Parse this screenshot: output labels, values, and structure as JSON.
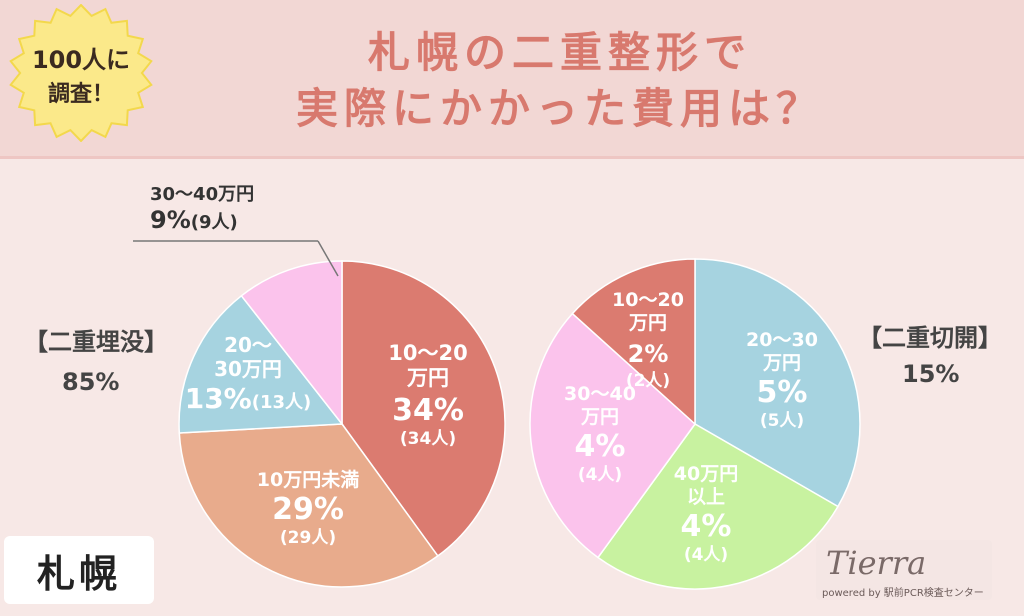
{
  "header": {
    "title_line1": "札幌の二重整形で",
    "title_line2": "実際にかかった費用は？",
    "badge_line1": "100人に",
    "badge_line2": "調査！"
  },
  "city": "札幌",
  "logo": {
    "name": "Tierra",
    "sub": "powered by 駅前PCR検査センター"
  },
  "colors": {
    "red": "#db7b70",
    "orange": "#e8ab8c",
    "blue": "#a6d3e0",
    "pink": "#fbc3ec",
    "green": "#c8f2a0"
  },
  "chart_data": [
    {
      "type": "pie",
      "title": "【二重埋没】",
      "share": "85%",
      "slices": [
        {
          "name": "10〜20万円",
          "value": 34,
          "pct": "34%",
          "count": "(34人)",
          "color": "#db7b70"
        },
        {
          "name": "10万円未満",
          "value": 29,
          "pct": "29%",
          "count": "(29人)",
          "color": "#e8ab8c"
        },
        {
          "name": "20〜30万円",
          "value": 13,
          "pct": "13%",
          "count": "(13人)",
          "color": "#a6d3e0"
        },
        {
          "name": "30〜40万円",
          "value": 9,
          "pct": "9%",
          "count": "(9人)",
          "color": "#fbc3ec"
        }
      ]
    },
    {
      "type": "pie",
      "title": "【二重切開】",
      "share": "15%",
      "slices": [
        {
          "name": "20〜30万円",
          "value": 5,
          "pct": "5%",
          "count": "(5人)",
          "color": "#a6d3e0"
        },
        {
          "name": "40万円以上",
          "value": 4,
          "pct": "4%",
          "count": "(4人)",
          "color": "#c8f2a0"
        },
        {
          "name": "30〜40万円",
          "value": 4,
          "pct": "4%",
          "count": "(4人)",
          "color": "#fbc3ec"
        },
        {
          "name": "10〜20万円",
          "value": 2,
          "pct": "2%",
          "count": "(2人)",
          "color": "#db7b70"
        }
      ]
    }
  ]
}
